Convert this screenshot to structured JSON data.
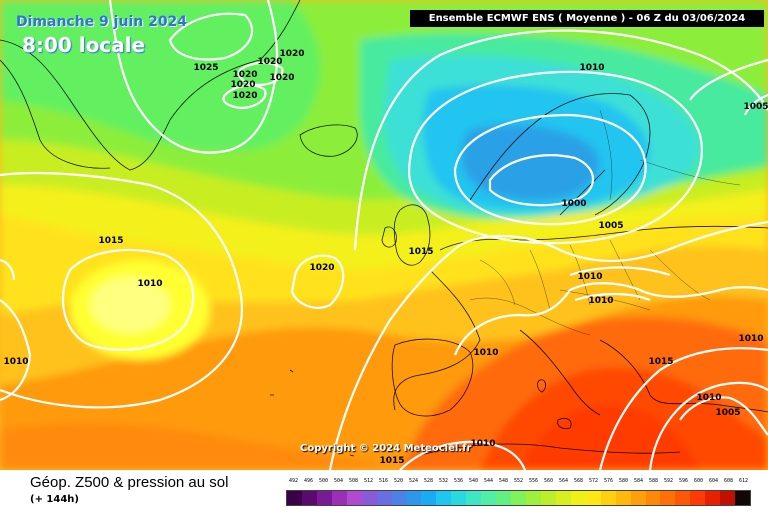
{
  "map": {
    "date": "Dimanche 9 juin 2024",
    "local_time": "8:00 locale",
    "model_header": "Ensemble ECMWF ENS  ( Moyenne )  -  06 Z du 03/06/2024",
    "copyright": "Copyright © 2024 Meteociel.fr",
    "isobar_labels": [
      "1025",
      "1020",
      "1020",
      "1020",
      "1020",
      "1020",
      "1020",
      "1010",
      "1005",
      "1015",
      "1010",
      "1020",
      "1015",
      "1000",
      "1005",
      "1010",
      "1010",
      "1010",
      "1015",
      "1010",
      "1010",
      "1005",
      "1010",
      "1015"
    ],
    "colors": {
      "isobar": "#ffffff",
      "low_core": "#2aa0e6",
      "high_core": "#ffff20",
      "warm_core": "#ff3a00"
    }
  },
  "legend": {
    "title": "Géop. Z500 & pression au sol",
    "subtitle": "(+ 144h)",
    "scale_values": [
      "492",
      "496",
      "500",
      "504",
      "508",
      "512",
      "516",
      "520",
      "524",
      "528",
      "532",
      "536",
      "540",
      "544",
      "548",
      "552",
      "556",
      "560",
      "564",
      "568",
      "572",
      "576",
      "580",
      "584",
      "588",
      "592",
      "596",
      "600",
      "604",
      "608",
      "612"
    ],
    "scale_colors": [
      "#3b0048",
      "#5a0a6e",
      "#7a1a94",
      "#9b2fb5",
      "#b04ad0",
      "#8a5bd8",
      "#6a6ee0",
      "#4a82e8",
      "#2f96ee",
      "#18acf2",
      "#1ec6f0",
      "#2ad8e0",
      "#3ee6c4",
      "#50eea6",
      "#62f080",
      "#80f25a",
      "#9ef03c",
      "#bcee2a",
      "#d8ee1e",
      "#eef018",
      "#ffe814",
      "#ffd010",
      "#ffb80c",
      "#ffa00a",
      "#ff8808",
      "#ff7006",
      "#ff5804",
      "#ff3a02",
      "#e82000",
      "#c01000",
      "#100808"
    ]
  }
}
